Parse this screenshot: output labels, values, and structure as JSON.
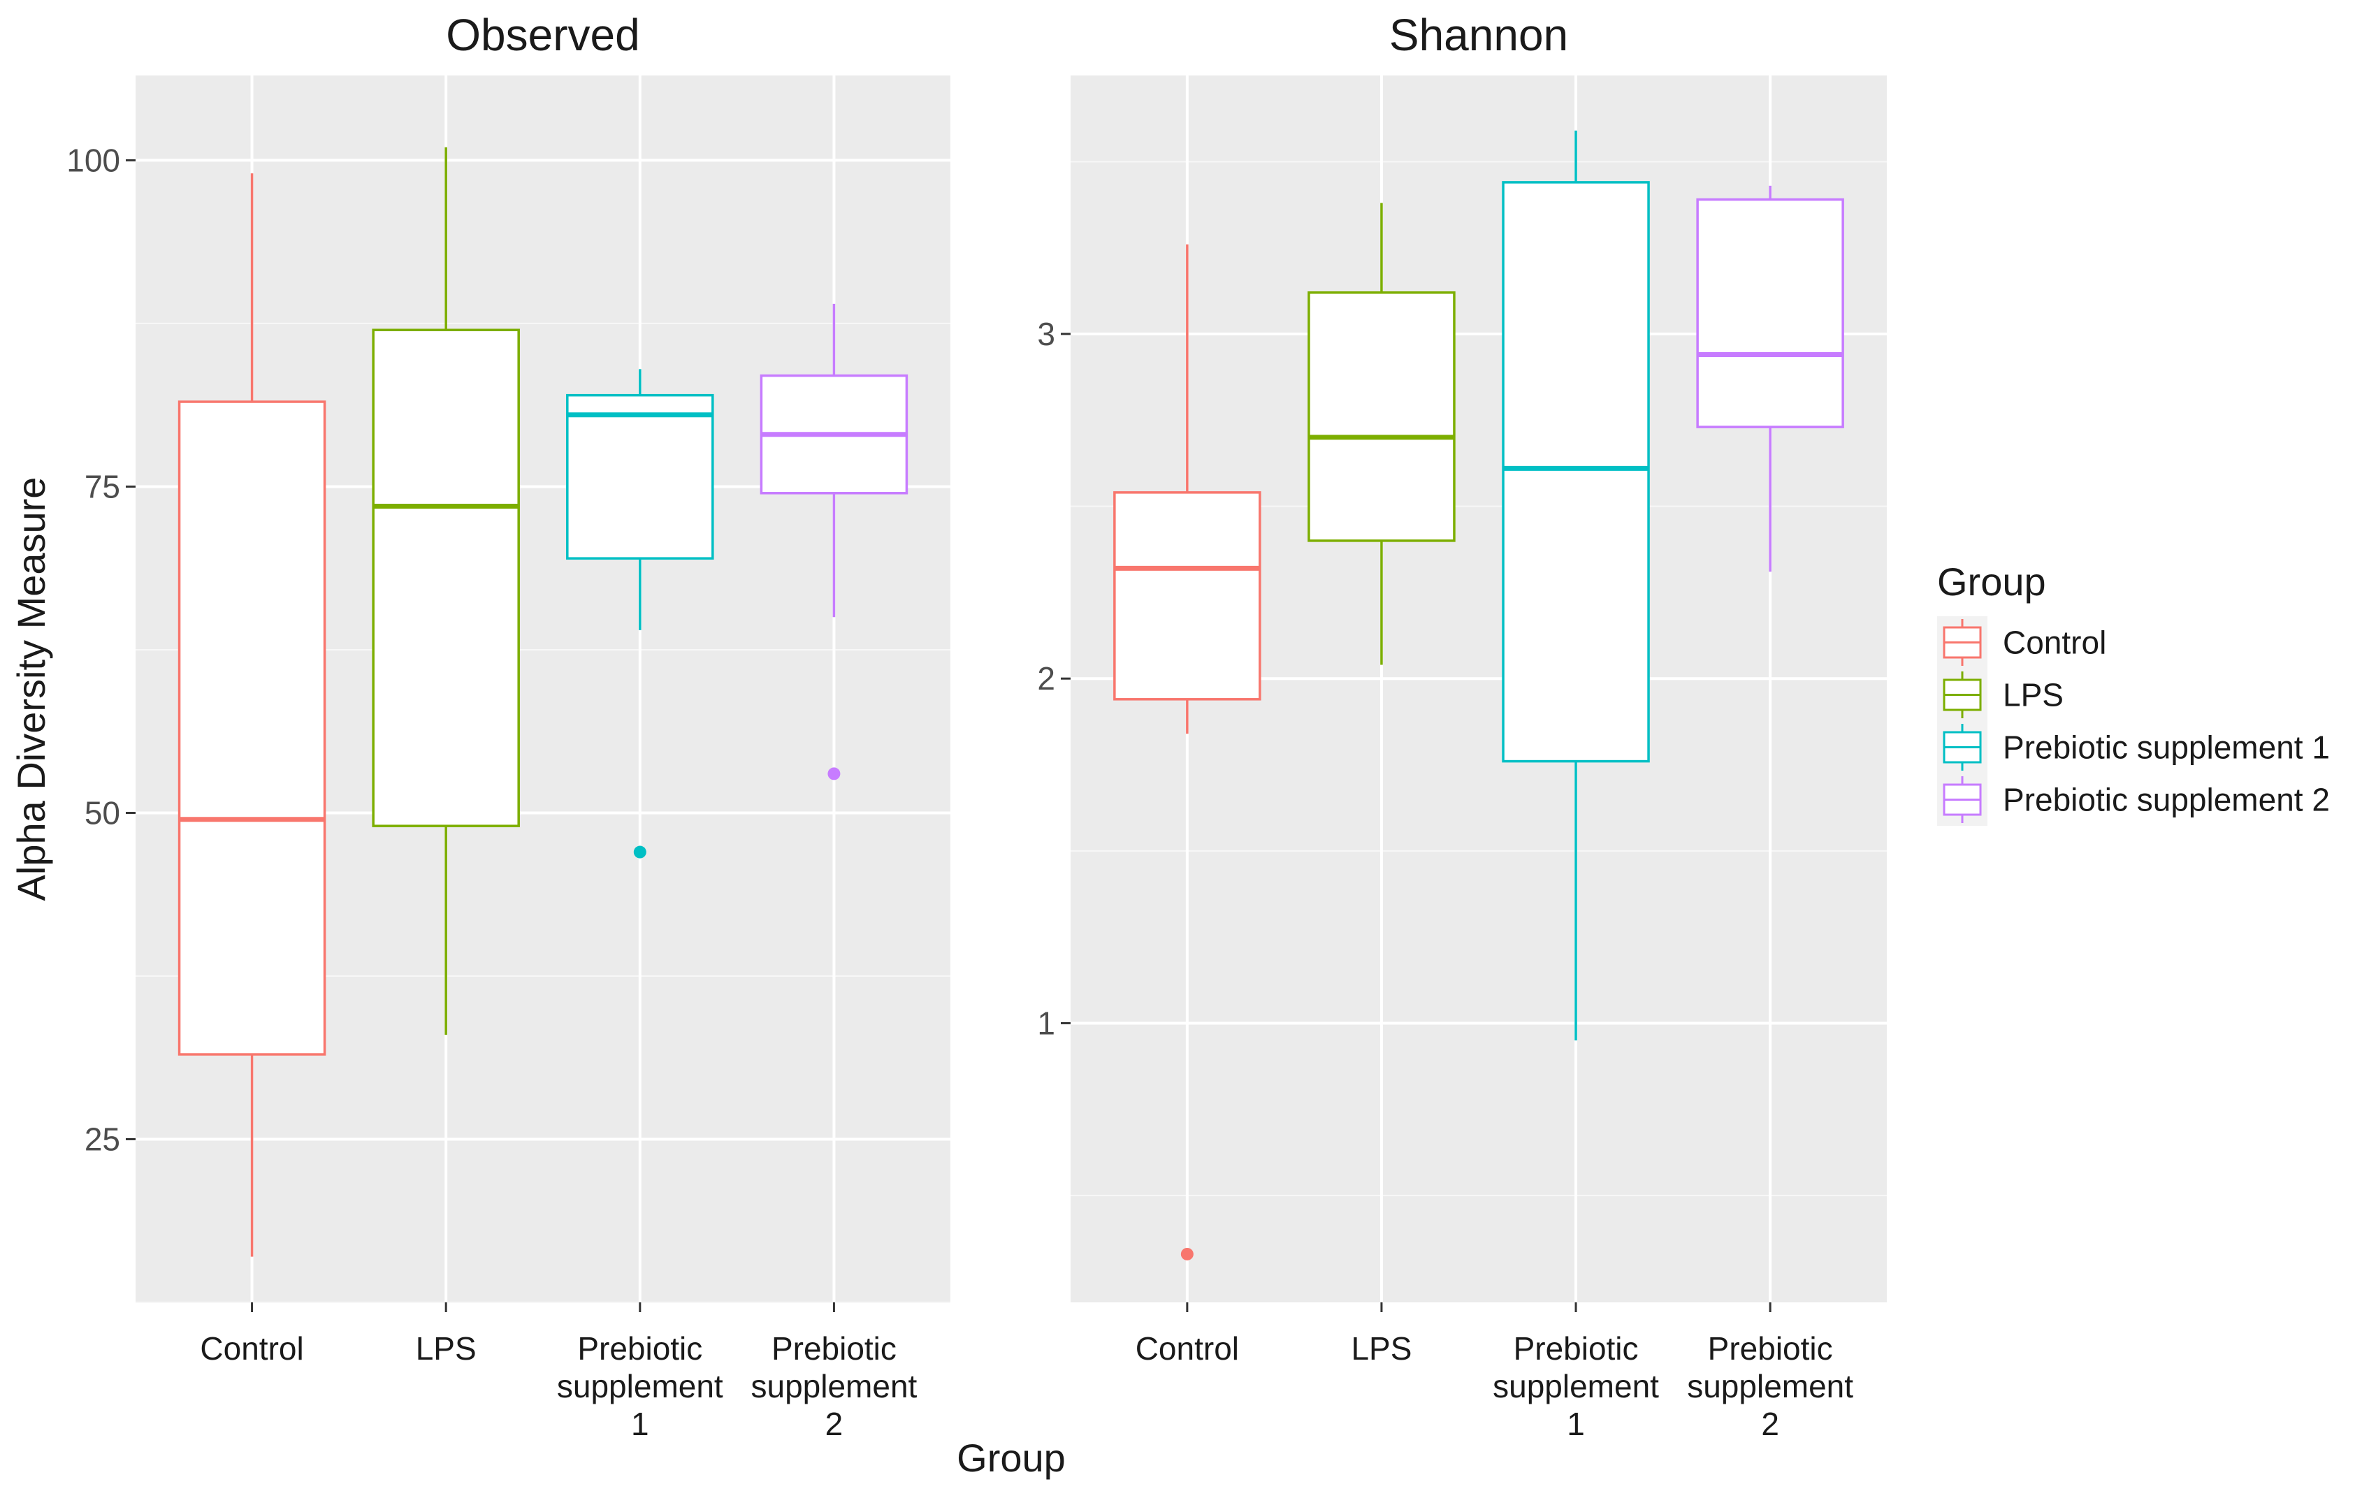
{
  "chart_data": {
    "type": "boxplot",
    "xlabel": "Group",
    "ylabel": "Alpha Diversity Measure",
    "categories": [
      {
        "lines": [
          "Control"
        ]
      },
      {
        "lines": [
          "LPS"
        ]
      },
      {
        "lines": [
          "Prebiotic",
          "supplement",
          "1"
        ]
      },
      {
        "lines": [
          "Prebiotic",
          "supplement",
          "2"
        ]
      }
    ],
    "colors": [
      "#F8766D",
      "#7CAE00",
      "#00BFC4",
      "#C77CFF"
    ],
    "legend": {
      "title": "Group",
      "position": "right",
      "entries": [
        "Control",
        "LPS",
        "Prebiotic supplement 1",
        "Prebiotic supplement 2"
      ]
    },
    "panels": [
      {
        "title": "Observed",
        "ylim": [
          12.5,
          106.5
        ],
        "yticks": [
          25,
          50,
          75,
          100
        ],
        "boxes": [
          {
            "min": 16,
            "q1": 31.5,
            "median": 49.5,
            "q3": 81.5,
            "max": 99,
            "outliers": []
          },
          {
            "min": 33,
            "q1": 49,
            "median": 73.5,
            "q3": 87,
            "max": 101,
            "outliers": []
          },
          {
            "min": 64,
            "q1": 69.5,
            "median": 80.5,
            "q3": 82,
            "max": 84,
            "outliers": [
              47
            ]
          },
          {
            "min": 65,
            "q1": 74.5,
            "median": 79,
            "q3": 83.5,
            "max": 89,
            "outliers": [
              53
            ]
          }
        ]
      },
      {
        "title": "Shannon",
        "ylim": [
          0.19,
          3.75
        ],
        "yticks": [
          1,
          2,
          3
        ],
        "boxes": [
          {
            "min": 1.84,
            "q1": 1.94,
            "median": 2.32,
            "q3": 2.54,
            "max": 3.26,
            "outliers": [
              0.33
            ]
          },
          {
            "min": 2.04,
            "q1": 2.4,
            "median": 2.7,
            "q3": 3.12,
            "max": 3.38,
            "outliers": []
          },
          {
            "min": 0.95,
            "q1": 1.76,
            "median": 2.61,
            "q3": 3.44,
            "max": 3.59,
            "outliers": []
          },
          {
            "min": 2.31,
            "q1": 2.73,
            "median": 2.94,
            "q3": 3.39,
            "max": 3.43,
            "outliers": []
          }
        ]
      }
    ]
  }
}
